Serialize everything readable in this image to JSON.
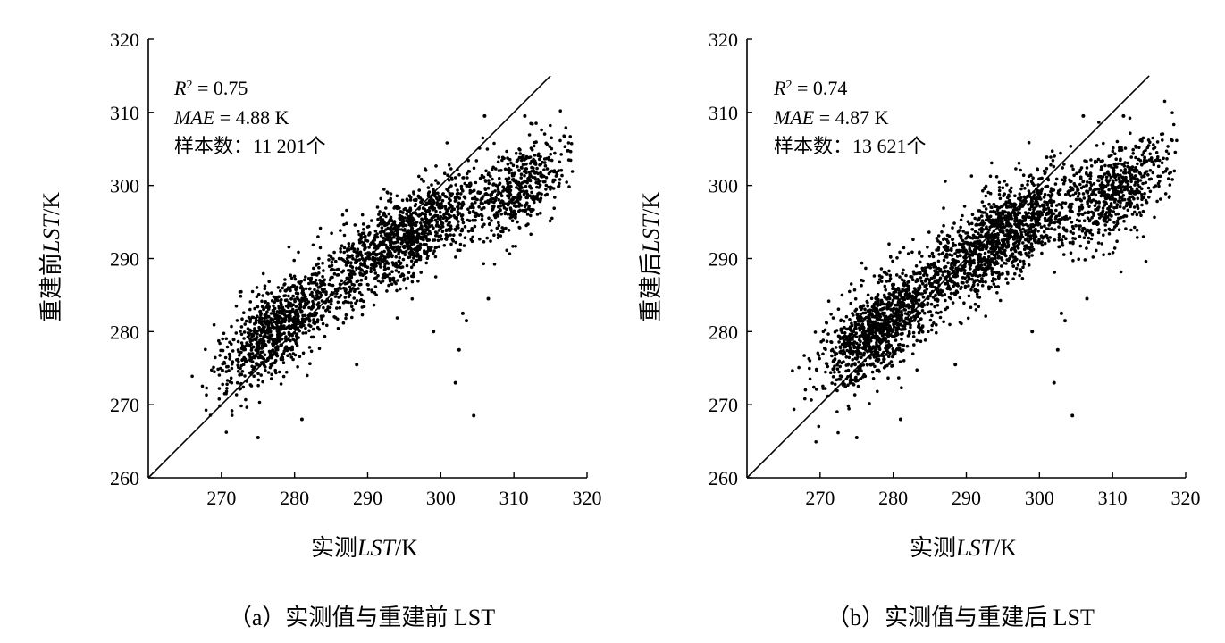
{
  "chart_data": [
    {
      "type": "scatter",
      "panel_caption": "（a）实测值与重建前 LST",
      "xlabel": {
        "prefix": "实测",
        "italic": "LST",
        "suffix": "/K"
      },
      "ylabel": {
        "prefix": "重建前",
        "italic": "LST",
        "suffix": "/K"
      },
      "xlim": [
        260,
        320
      ],
      "ylim": [
        260,
        320
      ],
      "xticks": [
        270,
        280,
        290,
        300,
        310,
        320
      ],
      "yticks": [
        260,
        270,
        280,
        290,
        300,
        310,
        320
      ],
      "reference_line": {
        "label": "1:1",
        "from": [
          260,
          260
        ],
        "to": [
          315,
          315
        ]
      },
      "annotations": {
        "r2": {
          "var": "R",
          "sup": "2",
          "text": " = 0.75"
        },
        "mae": {
          "var": "MAE",
          "text": " = 4.88 K"
        },
        "samples": "样本数：11 201个"
      },
      "sample_count": 11201,
      "point_color": "#000000",
      "distribution": {
        "trend": [
          [
            270,
            275
          ],
          [
            280,
            282
          ],
          [
            290,
            290
          ],
          [
            300,
            296
          ],
          [
            310,
            299
          ],
          [
            317,
            303
          ]
        ],
        "noise_sd": 4.2,
        "x_range": [
          266,
          318
        ]
      },
      "outliers": [
        [
          302,
          273
        ],
        [
          304.5,
          268.5
        ],
        [
          302.5,
          277.5
        ],
        [
          303.5,
          281.5
        ],
        [
          303,
          282.5
        ],
        [
          288.5,
          275.5
        ],
        [
          306.5,
          284.5
        ],
        [
          281,
          268
        ],
        [
          275,
          265.5
        ],
        [
          299,
          280
        ],
        [
          306,
          309.5
        ],
        [
          311.5,
          309.5
        ]
      ]
    },
    {
      "type": "scatter",
      "panel_caption": "（b）实测值与重建后 LST",
      "xlabel": {
        "prefix": "实测",
        "italic": "LST",
        "suffix": "/K"
      },
      "ylabel": {
        "prefix": "重建后",
        "italic": "LST",
        "suffix": "/K"
      },
      "xlim": [
        260,
        320
      ],
      "ylim": [
        260,
        320
      ],
      "xticks": [
        270,
        280,
        290,
        300,
        310,
        320
      ],
      "yticks": [
        260,
        270,
        280,
        290,
        300,
        310,
        320
      ],
      "reference_line": {
        "label": "1:1",
        "from": [
          260,
          260
        ],
        "to": [
          315,
          315
        ]
      },
      "annotations": {
        "r2": {
          "var": "R",
          "sup": "2",
          "text": " = 0.74"
        },
        "mae": {
          "var": "MAE",
          "text": " = 4.87 K"
        },
        "samples": "样本数：13 621个"
      },
      "sample_count": 13621,
      "point_color": "#000000",
      "distribution": {
        "trend": [
          [
            270,
            275
          ],
          [
            280,
            282
          ],
          [
            290,
            290
          ],
          [
            300,
            296
          ],
          [
            310,
            299
          ],
          [
            317,
            303
          ]
        ],
        "noise_sd": 4.3,
        "x_range": [
          266,
          319
        ]
      },
      "outliers": [
        [
          302,
          273
        ],
        [
          304.5,
          268.5
        ],
        [
          302.5,
          277.5
        ],
        [
          303.5,
          281.5
        ],
        [
          303,
          282.5
        ],
        [
          288.5,
          275.5
        ],
        [
          306.5,
          284.5
        ],
        [
          281,
          268
        ],
        [
          275,
          265.5
        ],
        [
          299,
          280
        ],
        [
          306,
          309.5
        ],
        [
          311.5,
          309.5
        ]
      ]
    }
  ]
}
